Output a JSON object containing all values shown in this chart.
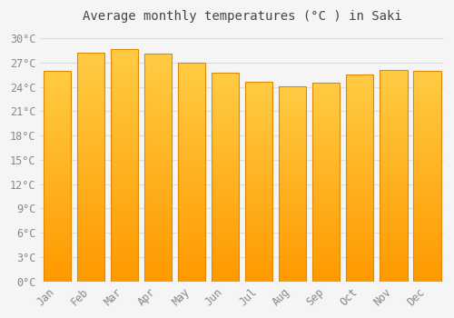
{
  "title": "Average monthly temperatures (°C ) in Saki",
  "months": [
    "Jan",
    "Feb",
    "Mar",
    "Apr",
    "May",
    "Jun",
    "Jul",
    "Aug",
    "Sep",
    "Oct",
    "Nov",
    "Dec"
  ],
  "temperatures": [
    26.0,
    28.2,
    28.7,
    28.1,
    27.0,
    25.7,
    24.6,
    24.1,
    24.5,
    25.5,
    26.1,
    26.0
  ],
  "bar_color_top": "#FFCC44",
  "bar_color_bottom": "#FF9900",
  "bar_edge_color": "#E08800",
  "background_color": "#F5F5F5",
  "grid_color": "#DDDDDD",
  "ylim": [
    0,
    31
  ],
  "yticks": [
    0,
    3,
    6,
    9,
    12,
    15,
    18,
    21,
    24,
    27,
    30
  ],
  "title_fontsize": 10,
  "tick_fontsize": 8.5,
  "bar_width": 0.82,
  "figsize": [
    5.0,
    3.5
  ],
  "dpi": 100
}
